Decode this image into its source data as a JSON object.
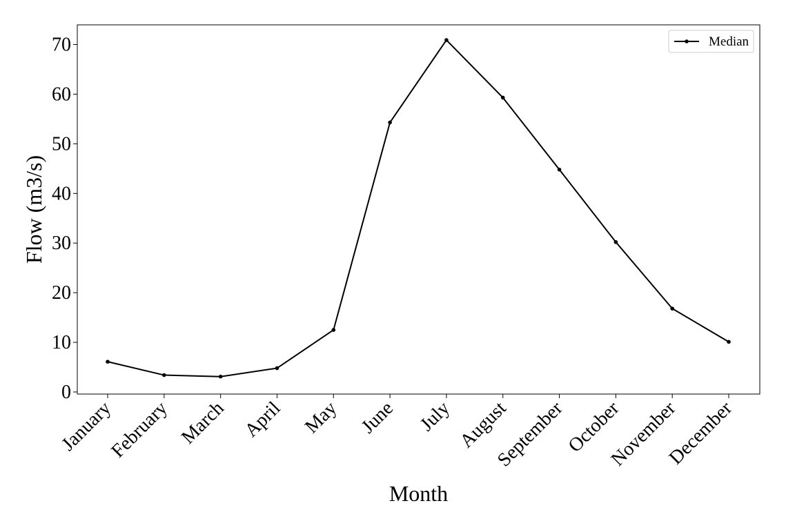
{
  "chart_data": {
    "type": "line",
    "title": "",
    "xlabel": "Month",
    "ylabel": "Flow (m3/s)",
    "categories": [
      "January",
      "February",
      "March",
      "April",
      "May",
      "June",
      "July",
      "August",
      "September",
      "October",
      "November",
      "December"
    ],
    "series": [
      {
        "name": "Median",
        "color": "#000000",
        "marker": "dot",
        "values": [
          6.1,
          3.4,
          3.1,
          4.8,
          12.5,
          54.3,
          70.9,
          59.3,
          44.8,
          30.2,
          16.8,
          10.1
        ]
      }
    ],
    "ylim": [
      0,
      74
    ],
    "yticks": [
      0,
      10,
      20,
      30,
      40,
      50,
      60,
      70
    ],
    "grid": false,
    "legend_position": "top-right"
  }
}
